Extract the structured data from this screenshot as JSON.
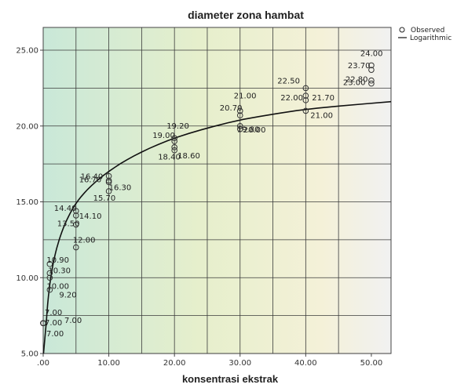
{
  "chart_data": {
    "type": "scatter",
    "title": "diameter zona hambat",
    "xlabel": "konsentrasi ekstrak",
    "ylabel": "",
    "xlim": [
      0,
      53
    ],
    "ylim": [
      5,
      26.5
    ],
    "xticks": [
      ".00",
      "10.00",
      "20.00",
      "30.00",
      "40.00",
      "50.00"
    ],
    "yticks": [
      "5.00",
      "10.00",
      "15.00",
      "20.00",
      "25.00"
    ],
    "grid": true,
    "legend": {
      "placement": "top-right",
      "entries": [
        "Observed",
        "Logarithmic"
      ]
    },
    "series": [
      {
        "name": "Observed",
        "marker": "circle",
        "points": [
          {
            "x": 0,
            "y": 7.0,
            "label": "7.00"
          },
          {
            "x": 0,
            "y": 7.0,
            "label": "7.00"
          },
          {
            "x": 0,
            "y": 7.0,
            "label": "7.00"
          },
          {
            "x": 0,
            "y": 7.0,
            "label": "7.00"
          },
          {
            "x": 1,
            "y": 9.2,
            "label": "9.20"
          },
          {
            "x": 1,
            "y": 10.0,
            "label": "10.00"
          },
          {
            "x": 1,
            "y": 10.3,
            "label": "10.30"
          },
          {
            "x": 1,
            "y": 10.9,
            "label": "10.90"
          },
          {
            "x": 5,
            "y": 12.0,
            "label": "12.00"
          },
          {
            "x": 5,
            "y": 13.5,
            "label": "13.50"
          },
          {
            "x": 5,
            "y": 14.1,
            "label": "14.10"
          },
          {
            "x": 5,
            "y": 14.4,
            "label": "14.40"
          },
          {
            "x": 10,
            "y": 15.7,
            "label": "15.70"
          },
          {
            "x": 10,
            "y": 16.3,
            "label": "16.30"
          },
          {
            "x": 10,
            "y": 16.4,
            "label": "16.40"
          },
          {
            "x": 10,
            "y": 16.7,
            "label": "16.70"
          },
          {
            "x": 20,
            "y": 18.4,
            "label": "18.40"
          },
          {
            "x": 20,
            "y": 18.6,
            "label": "18.60"
          },
          {
            "x": 20,
            "y": 19.0,
            "label": "19.00"
          },
          {
            "x": 20,
            "y": 19.2,
            "label": "19.20"
          },
          {
            "x": 30,
            "y": 19.8,
            "label": "19.80"
          },
          {
            "x": 30,
            "y": 20.0,
            "label": "20.00"
          },
          {
            "x": 30,
            "y": 20.7,
            "label": "20.70"
          },
          {
            "x": 30,
            "y": 21.0,
            "label": "21.00"
          },
          {
            "x": 40,
            "y": 21.0,
            "label": "21.00"
          },
          {
            "x": 40,
            "y": 21.7,
            "label": "21.70"
          },
          {
            "x": 40,
            "y": 22.0,
            "label": "22.00"
          },
          {
            "x": 40,
            "y": 22.5,
            "label": "22.50"
          },
          {
            "x": 50,
            "y": 22.8,
            "label": "22.80"
          },
          {
            "x": 50,
            "y": 23.0,
            "label": "23.00"
          },
          {
            "x": 50,
            "y": 23.7,
            "label": "23.70"
          },
          {
            "x": 50,
            "y": 24.0,
            "label": "24.00"
          }
        ]
      },
      {
        "name": "Logarithmic",
        "type": "line",
        "fit": "logarithmic",
        "x_range": [
          0.05,
          53
        ],
        "points": [
          {
            "x": 0.5,
            "y": 7.2
          },
          {
            "x": 5,
            "y": 14.9
          },
          {
            "x": 10,
            "y": 17.0
          },
          {
            "x": 20,
            "y": 19.2
          },
          {
            "x": 30,
            "y": 20.4
          },
          {
            "x": 40,
            "y": 21.1
          },
          {
            "x": 50,
            "y": 21.5
          }
        ]
      }
    ]
  }
}
